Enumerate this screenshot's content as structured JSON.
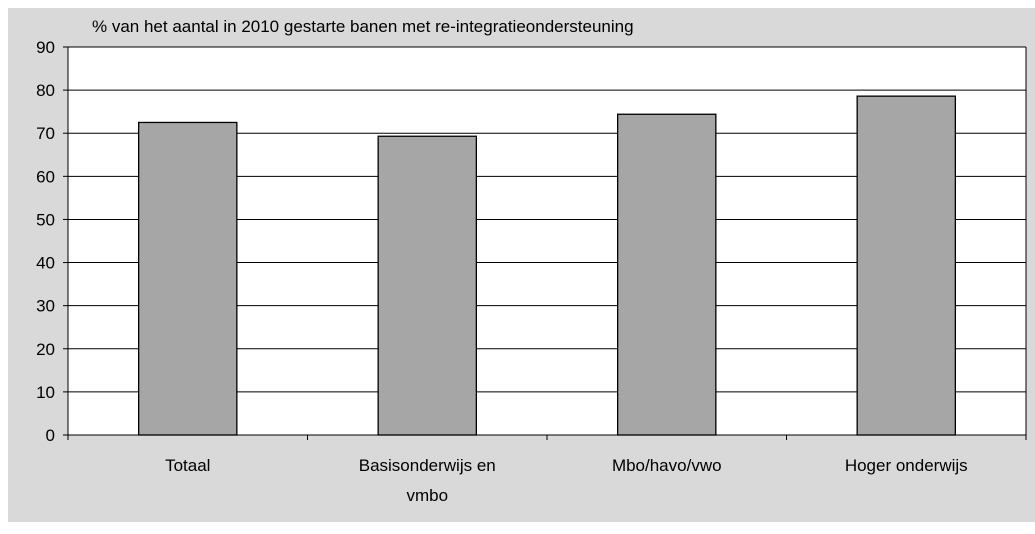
{
  "chart_data": {
    "type": "bar",
    "title": "% van het aantal in 2010 gestarte banen met re-integratieondersteuning",
    "categories": [
      [
        "Totaal"
      ],
      [
        "Basisonderwijs en",
        "vmbo"
      ],
      [
        "Mbo/havo/vwo"
      ],
      [
        "Hoger onderwijs"
      ]
    ],
    "values": [
      72.5,
      69.3,
      74.4,
      78.6
    ],
    "ylim": [
      0,
      90
    ],
    "yticks": [
      "0",
      "10",
      "20",
      "30",
      "40",
      "50",
      "60",
      "70",
      "80",
      "90"
    ],
    "grid": true,
    "legend": "none",
    "colors": {
      "bar_fill": "#a6a6a6",
      "bar_stroke": "#000000",
      "outer_background": "#d9d9d9",
      "plot_background": "#ffffff",
      "gridline": "#000000"
    }
  }
}
